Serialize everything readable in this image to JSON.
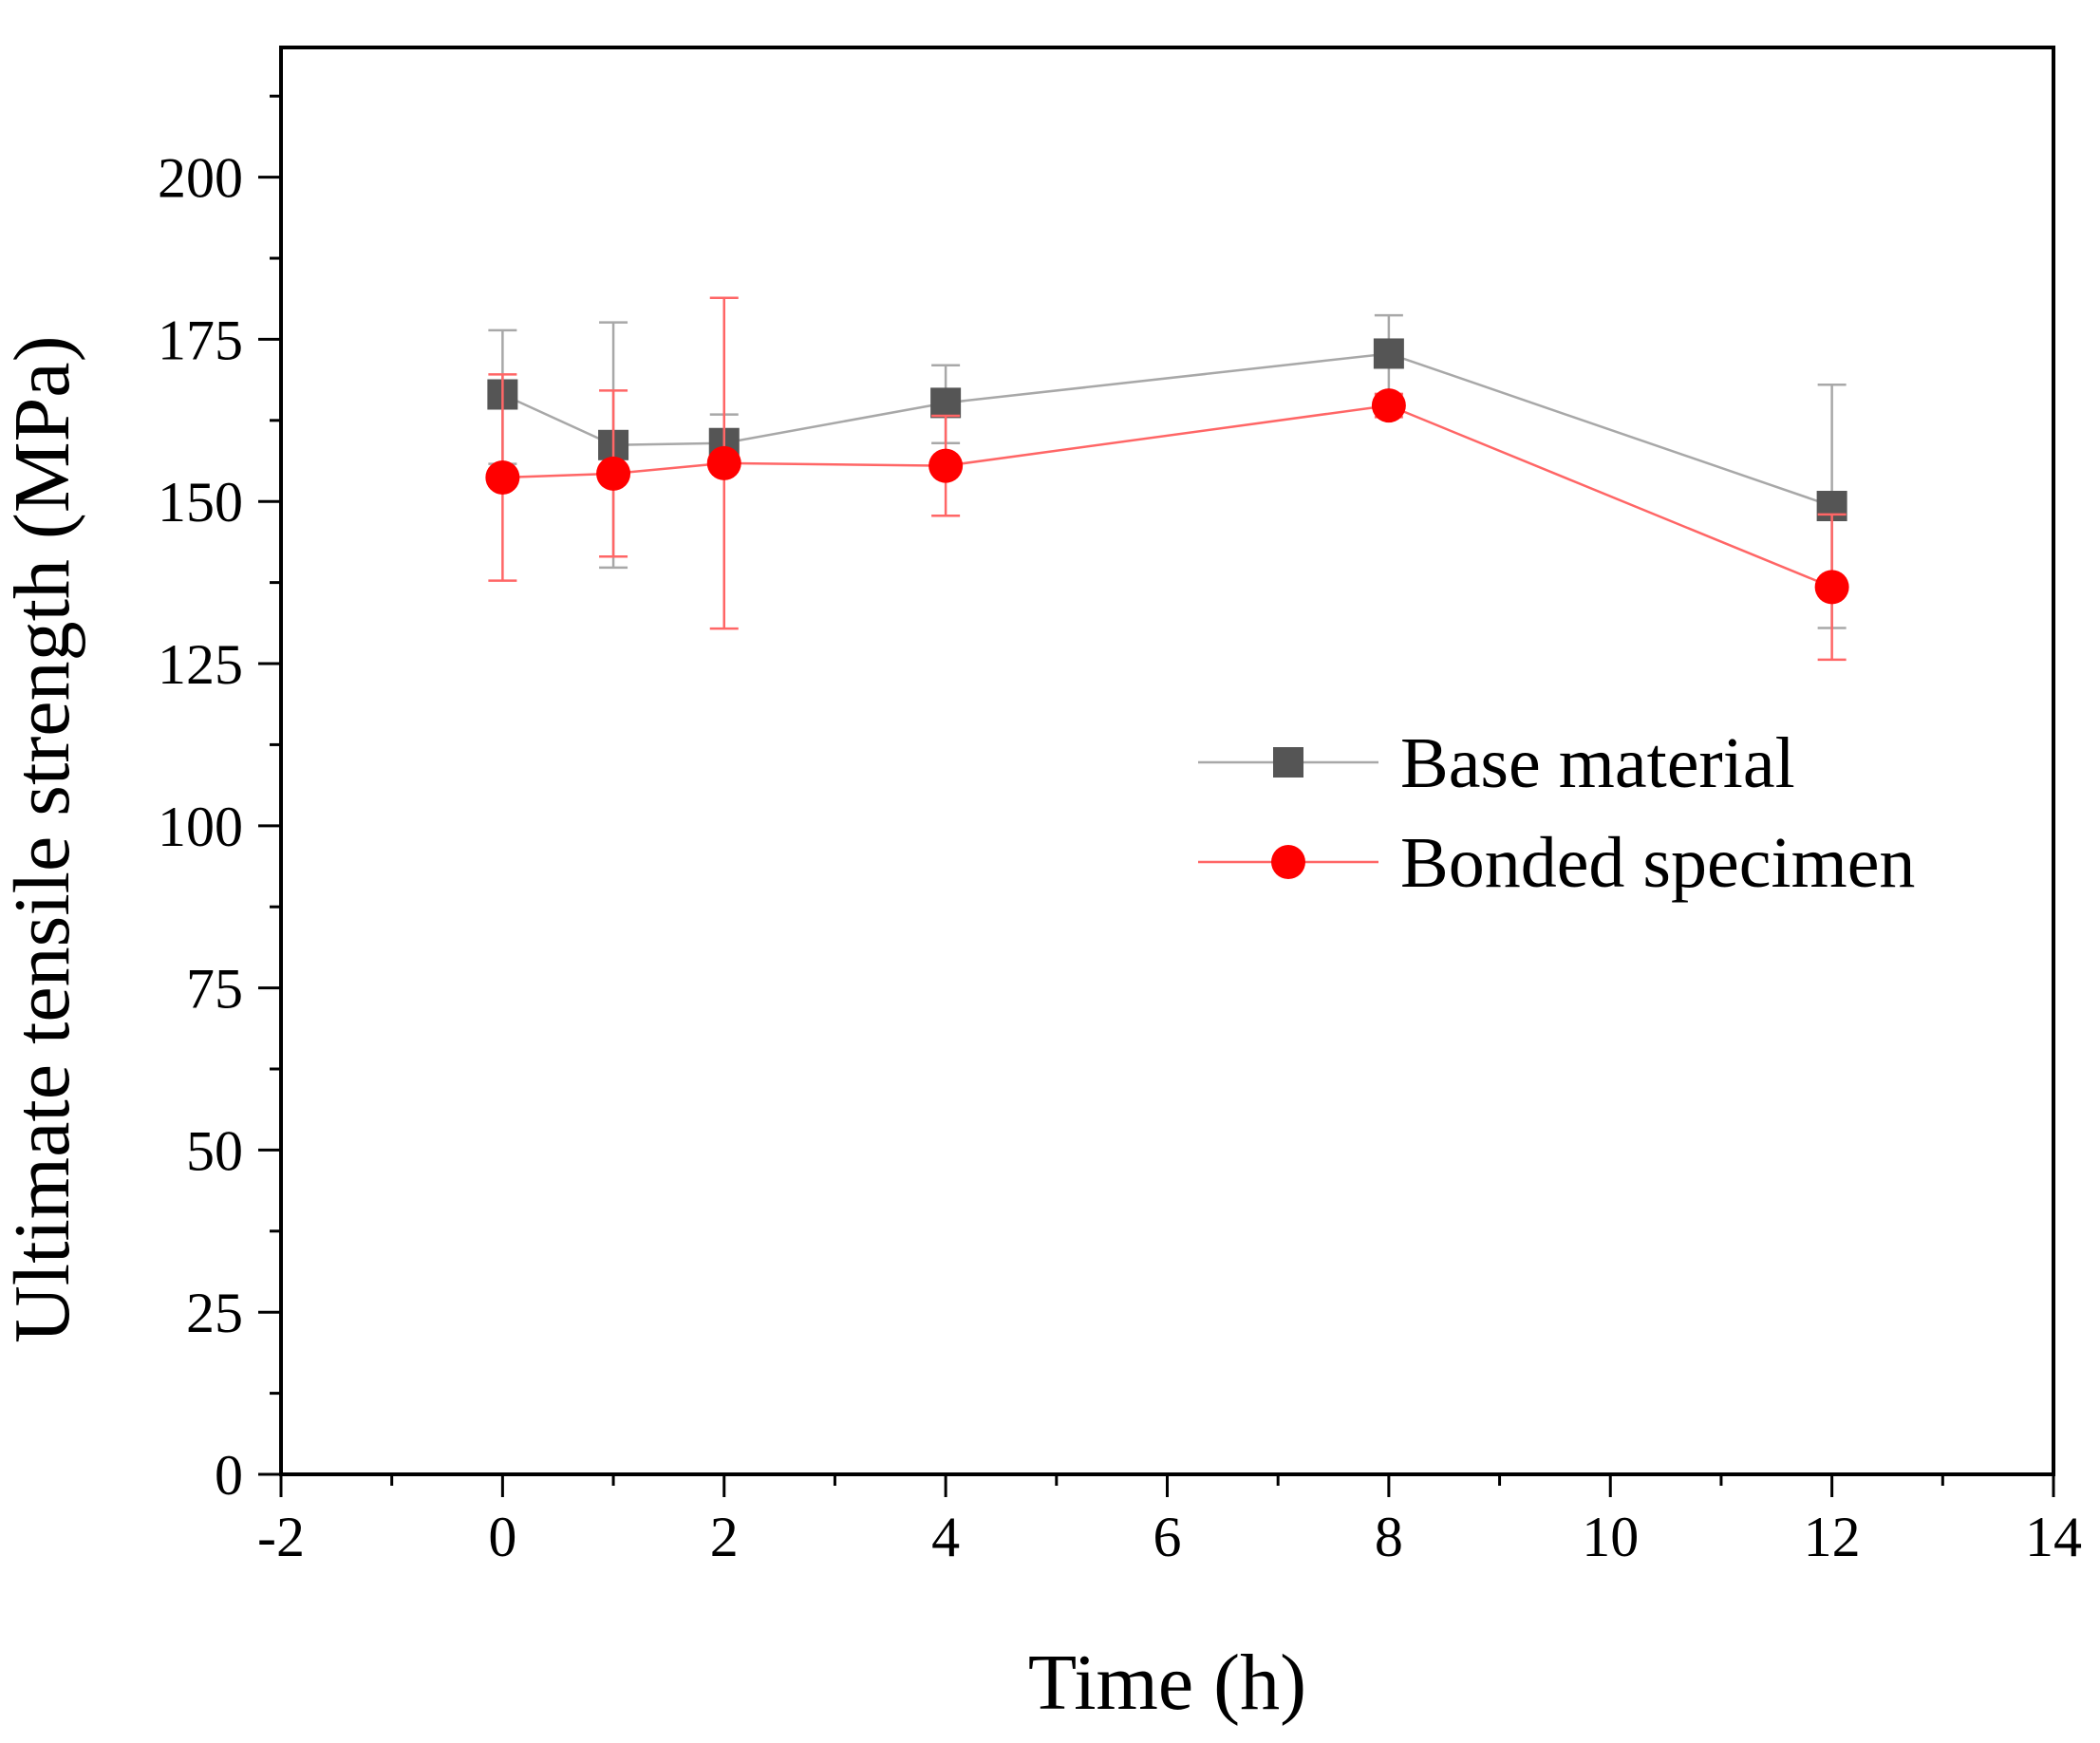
{
  "chart_data": {
    "type": "line",
    "title": "",
    "xlabel": "Time (h)",
    "ylabel": "Ultimate tensile strength (MPa)",
    "xlim": [
      -2,
      14
    ],
    "ylim": [
      0,
      220
    ],
    "xticks": [
      -2,
      0,
      2,
      4,
      6,
      8,
      10,
      12,
      14
    ],
    "xtick_labels": [
      "-2",
      "0",
      "2",
      "4",
      "6",
      "8",
      "10",
      "12",
      "14"
    ],
    "yticks": [
      0,
      25,
      50,
      75,
      100,
      125,
      150,
      175,
      200
    ],
    "ytick_labels": [
      "0",
      "25",
      "50",
      "75",
      "100",
      "125",
      "150",
      "175",
      "200"
    ],
    "legend_position": "center-right",
    "grid": false,
    "series": [
      {
        "name": "Base material",
        "marker": "square",
        "color": "#555555",
        "line_color": "#a8a8a8",
        "x": [
          0,
          1,
          2,
          4,
          8,
          12
        ],
        "y": [
          166.5,
          158.7,
          159.0,
          165.2,
          172.8,
          149.3
        ],
        "err_lower": [
          155.8,
          139.8,
          154.6,
          159.0,
          166.5,
          130.5
        ],
        "err_upper": [
          176.4,
          177.6,
          163.4,
          171.0,
          178.7,
          168.0
        ]
      },
      {
        "name": "Bonded specimen",
        "marker": "circle",
        "color": "#ff0000",
        "line_color": "#ff6666",
        "x": [
          0,
          1,
          2,
          4,
          8,
          12
        ],
        "y": [
          153.7,
          154.3,
          155.9,
          155.5,
          164.8,
          136.8
        ],
        "err_lower": [
          137.8,
          141.5,
          130.4,
          147.8,
          163.0,
          125.6
        ],
        "err_upper": [
          169.6,
          167.1,
          181.4,
          163.2,
          166.6,
          148.0
        ]
      }
    ]
  }
}
